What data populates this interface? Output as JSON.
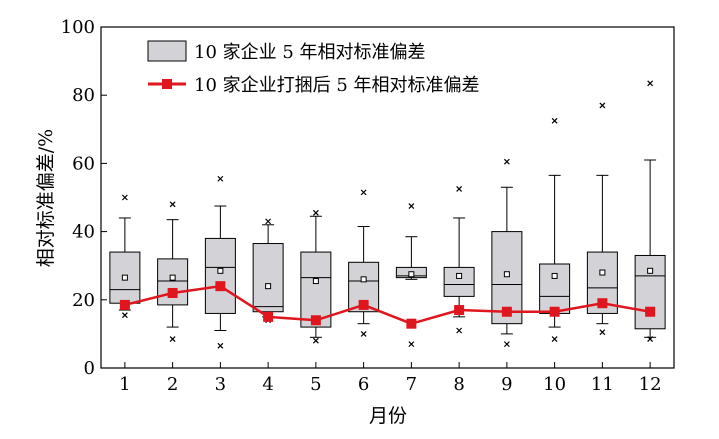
{
  "chart_data": {
    "type": "box",
    "xlabel": "月份",
    "ylabel": "相对标准偏差/%",
    "ylim": [
      0,
      100
    ],
    "yticks": [
      0,
      20,
      40,
      60,
      80,
      100
    ],
    "categories": [
      "1",
      "2",
      "3",
      "4",
      "5",
      "6",
      "7",
      "8",
      "9",
      "10",
      "11",
      "12"
    ],
    "legend": {
      "position": "top-left",
      "box_label": "10 家企业 5 年相对标准偏差",
      "line_label": "10 家企业打捆后 5 年相对标准偏差"
    },
    "box_series": {
      "name": "10 家企业 5 年相对标准偏差",
      "boxes": [
        {
          "month": "1",
          "whisker_low": 17.0,
          "q1": 19.0,
          "median": 23.0,
          "q3": 34.0,
          "whisker_high": 44.0,
          "mean": 26.5,
          "outliers": [
            50.0,
            15.5
          ]
        },
        {
          "month": "2",
          "whisker_low": 12.0,
          "q1": 18.5,
          "median": 25.5,
          "q3": 32.0,
          "whisker_high": 43.5,
          "mean": 26.5,
          "outliers": [
            48.0,
            8.5
          ]
        },
        {
          "month": "3",
          "whisker_low": 11.0,
          "q1": 16.0,
          "median": 29.5,
          "q3": 38.0,
          "whisker_high": 47.5,
          "mean": 28.5,
          "outliers": [
            55.5,
            6.5
          ]
        },
        {
          "month": "4",
          "whisker_low": 15.0,
          "q1": 16.5,
          "median": 18.0,
          "q3": 36.5,
          "whisker_high": 42.0,
          "mean": 24.0,
          "outliers": [
            43.0,
            14.0
          ]
        },
        {
          "month": "5",
          "whisker_low": 9.0,
          "q1": 12.0,
          "median": 26.5,
          "q3": 34.0,
          "whisker_high": 44.5,
          "mean": 25.5,
          "outliers": [
            45.5,
            8.0
          ]
        },
        {
          "month": "6",
          "whisker_low": 13.0,
          "q1": 16.5,
          "median": 25.5,
          "q3": 31.0,
          "whisker_high": 41.5,
          "mean": 26.0,
          "outliers": [
            51.5,
            10.0
          ]
        },
        {
          "month": "7",
          "whisker_low": 26.0,
          "q1": 26.5,
          "median": 27.0,
          "q3": 29.5,
          "whisker_high": 38.5,
          "mean": 27.5,
          "outliers": [
            47.5,
            7.0
          ]
        },
        {
          "month": "8",
          "whisker_low": 15.0,
          "q1": 21.0,
          "median": 24.5,
          "q3": 29.5,
          "whisker_high": 44.0,
          "mean": 27.0,
          "outliers": [
            52.5,
            11.0
          ]
        },
        {
          "month": "9",
          "whisker_low": 10.0,
          "q1": 13.0,
          "median": 24.5,
          "q3": 40.0,
          "whisker_high": 53.0,
          "mean": 27.5,
          "outliers": [
            60.5,
            7.0
          ]
        },
        {
          "month": "10",
          "whisker_low": 12.0,
          "q1": 16.0,
          "median": 21.0,
          "q3": 30.5,
          "whisker_high": 56.5,
          "mean": 27.0,
          "outliers": [
            72.5,
            8.5
          ]
        },
        {
          "month": "11",
          "whisker_low": 13.0,
          "q1": 16.0,
          "median": 23.5,
          "q3": 34.0,
          "whisker_high": 56.5,
          "mean": 28.0,
          "outliers": [
            77.0,
            10.5
          ]
        },
        {
          "month": "12",
          "whisker_low": 9.0,
          "q1": 11.5,
          "median": 27.0,
          "q3": 33.0,
          "whisker_high": 61.0,
          "mean": 28.5,
          "outliers": [
            83.5,
            8.5
          ]
        }
      ]
    },
    "line_series": {
      "name": "10 家企业打捆后 5 年相对标准偏差",
      "color": "#e0161e",
      "values": [
        18.5,
        22.0,
        24.0,
        15.0,
        14.0,
        18.5,
        13.0,
        17.0,
        16.5,
        16.5,
        19.0,
        16.5
      ]
    },
    "colors": {
      "box_fill": "#d3d3d7",
      "box_stroke": "#000000",
      "line": "#e0161e"
    }
  }
}
